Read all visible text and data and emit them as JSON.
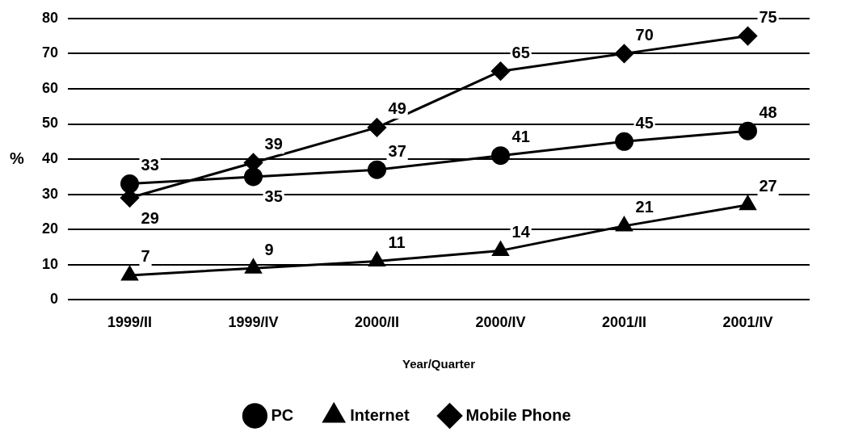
{
  "chart_data": {
    "type": "line",
    "xlabel": "Year/Quarter",
    "ylabel": "%",
    "categories": [
      "1999/II",
      "1999/IV",
      "2000/II",
      "2000/IV",
      "2001/II",
      "2001/IV"
    ],
    "series": [
      {
        "name": "PC",
        "color": "#000000",
        "marker": "circle",
        "values": [
          33,
          35,
          37,
          41,
          45,
          48
        ]
      },
      {
        "name": "Internet",
        "color": "#000000",
        "marker": "triangle",
        "values": [
          7,
          9,
          11,
          14,
          21,
          27
        ]
      },
      {
        "name": "Mobile Phone",
        "color": "#000000",
        "marker": "diamond",
        "values": [
          29,
          39,
          49,
          65,
          70,
          75
        ]
      }
    ],
    "ylim": [
      0,
      80
    ],
    "yticks": [
      0,
      10,
      20,
      30,
      40,
      50,
      60,
      70,
      80
    ],
    "grid": "y",
    "legend": "bottom",
    "data_labels": true,
    "line_style": "solid"
  }
}
